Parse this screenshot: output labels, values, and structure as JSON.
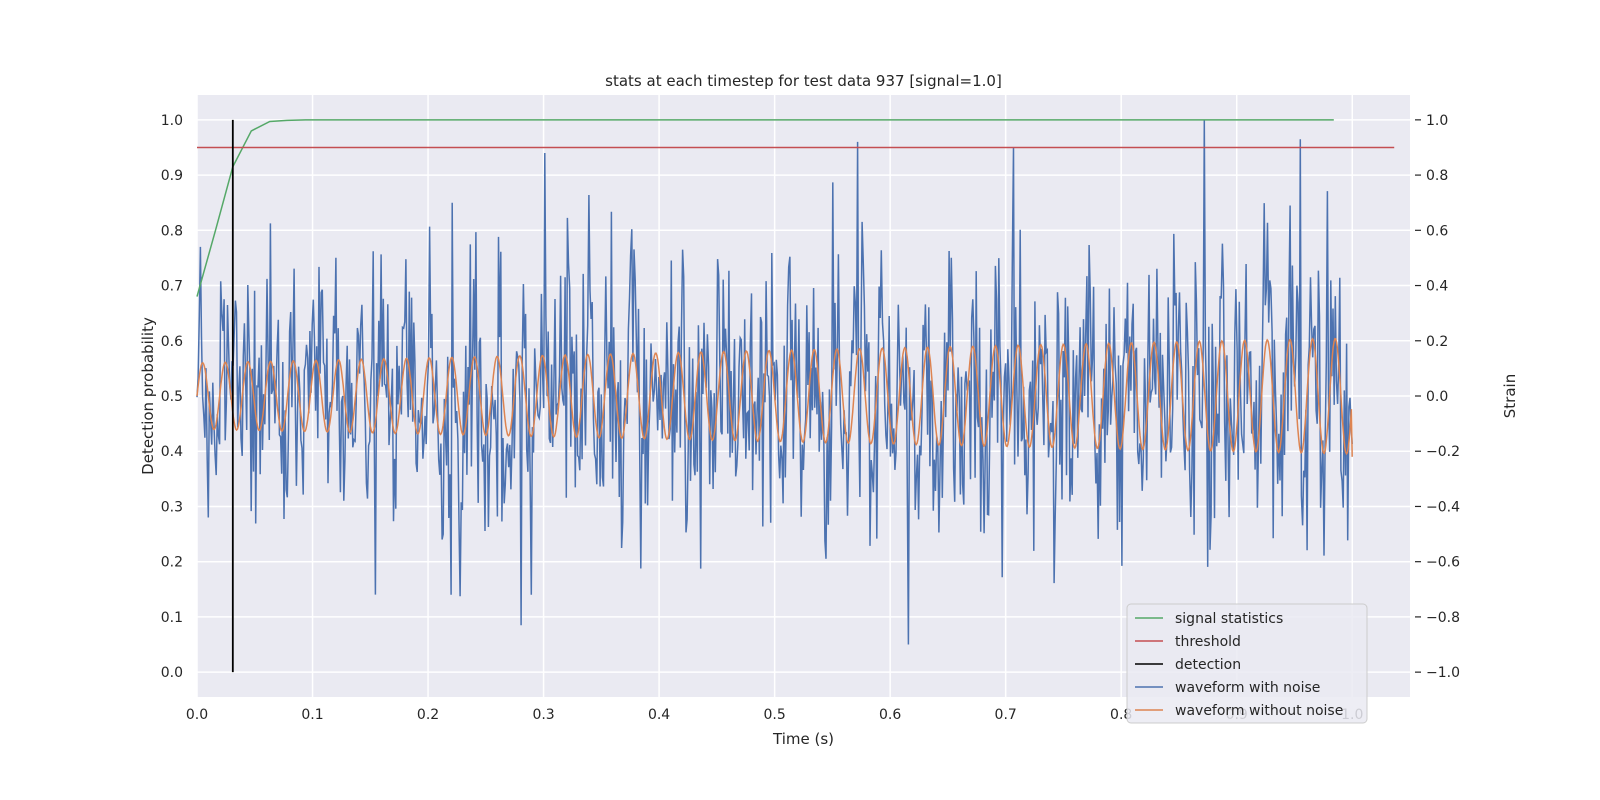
{
  "chart_data": {
    "type": "line",
    "title": "stats at each timestep for test data 937 [signal=1.0]",
    "xlabel": "Time (s)",
    "ylabel": "Detection probability",
    "ylabel_right": "Strain",
    "xlim": [
      0.0,
      1.05
    ],
    "ylim": [
      -0.045,
      1.045
    ],
    "ylim_right": [
      -1.09,
      1.09
    ],
    "xticks": [
      "0.0",
      "0.1",
      "0.2",
      "0.3",
      "0.4",
      "0.5",
      "0.6",
      "0.7",
      "0.8",
      "0.9",
      "1.0"
    ],
    "yticks": [
      "0.0",
      "0.1",
      "0.2",
      "0.3",
      "0.4",
      "0.5",
      "0.6",
      "0.7",
      "0.8",
      "0.9",
      "1.0"
    ],
    "yticks_right": [
      "−1.0",
      "−0.8",
      "−0.6",
      "−0.4",
      "−0.2",
      "0.0",
      "0.2",
      "0.4",
      "0.6",
      "0.8",
      "1.0"
    ],
    "grid": true,
    "legend_position": "lower-right",
    "colors": {
      "signal_statistics": "#55a868",
      "threshold": "#c44e52",
      "detection": "#000000",
      "waveform_with_noise": "#4c72b0",
      "waveform_without_noise": "#dd8452",
      "plot_background": "#eaeaf2",
      "grid": "#ffffff"
    },
    "series": [
      {
        "name": "signal statistics",
        "axis": "left",
        "x": [
          0.0,
          0.016,
          0.031,
          0.047,
          0.063,
          0.078,
          0.094,
          0.2,
          0.4,
          0.6,
          0.8,
          0.984
        ],
        "y": [
          0.68,
          0.8,
          0.915,
          0.98,
          0.997,
          0.999,
          1.0,
          1.0,
          1.0,
          1.0,
          1.0,
          1.0
        ]
      },
      {
        "name": "threshold",
        "axis": "left",
        "x": [
          0.0,
          1.045
        ],
        "y": [
          0.95,
          0.95
        ]
      },
      {
        "name": "detection",
        "axis": "left",
        "x": [
          0.031,
          0.031
        ],
        "y": [
          0.0,
          1.0
        ]
      },
      {
        "name": "waveform with noise",
        "axis": "right",
        "x_range": [
          0.0,
          1.0
        ],
        "points": 1024,
        "y_range": [
          -1.0,
          1.0
        ],
        "highlights": [
          [
            0.572,
            0.92
          ],
          [
            0.707,
            0.9
          ],
          [
            0.872,
            1.0
          ],
          [
            0.955,
            0.93
          ],
          [
            0.616,
            -0.9
          ],
          [
            0.281,
            -0.83
          ],
          [
            0.22,
            -0.72
          ]
        ]
      },
      {
        "name": "waveform without noise",
        "axis": "right",
        "x_range": [
          0.0,
          1.0
        ],
        "cycles": 51,
        "amplitude_start": 0.12,
        "amplitude_end": 0.21,
        "y_end": -0.22
      }
    ]
  }
}
